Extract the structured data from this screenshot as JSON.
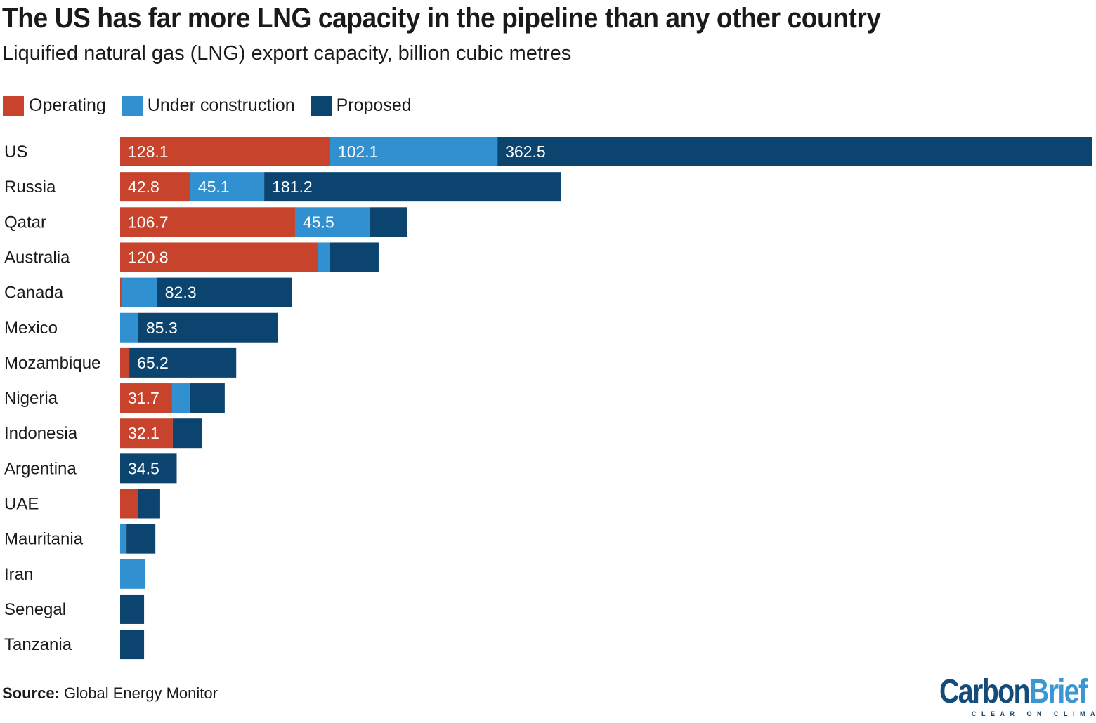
{
  "chart_data": {
    "type": "bar",
    "orientation": "horizontal",
    "stacked": true,
    "title": "The US has far more LNG capacity in the pipeline than any other country",
    "subtitle": "Liquified natural gas (LNG) export capacity, billion cubic metres",
    "legend_position": "top-left",
    "grid": false,
    "xlim": [
      0,
      592.7
    ],
    "categories": [
      "US",
      "Russia",
      "Qatar",
      "Australia",
      "Canada",
      "Mexico",
      "Mozambique",
      "Nigeria",
      "Indonesia",
      "Argentina",
      "UAE",
      "Mauritania",
      "Iran",
      "Senegal",
      "Tanzania"
    ],
    "series": [
      {
        "name": "Operating",
        "color": "#c8432b",
        "values": [
          128.1,
          42.8,
          106.7,
          120.8,
          0.9,
          0,
          5.6,
          31.7,
          32.1,
          0,
          11.1,
          0,
          0,
          0,
          0
        ],
        "labeled": [
          true,
          true,
          true,
          true,
          false,
          false,
          false,
          true,
          true,
          false,
          false,
          false,
          false,
          false,
          false
        ]
      },
      {
        "name": "Under construction",
        "color": "#3090d0",
        "values": [
          102.1,
          45.1,
          45.5,
          7.3,
          21.7,
          11.1,
          0,
          10.7,
          0,
          0,
          0,
          3.9,
          15.4,
          0,
          0
        ],
        "labeled": [
          true,
          true,
          true,
          false,
          false,
          false,
          false,
          false,
          false,
          false,
          false,
          false,
          false,
          false,
          false
        ]
      },
      {
        "name": "Proposed",
        "color": "#0c4470",
        "values": [
          362.5,
          181.2,
          22.7,
          29.6,
          82.3,
          85.3,
          65.2,
          21.4,
          18.0,
          34.5,
          13.3,
          17.6,
          0,
          14.6,
          14.6
        ],
        "labeled": [
          true,
          true,
          false,
          false,
          true,
          true,
          true,
          false,
          false,
          true,
          false,
          false,
          false,
          false,
          false
        ]
      }
    ]
  },
  "source": {
    "label": "Source:",
    "text": "Global Energy Monitor"
  },
  "logo": {
    "carbon": "Carbon",
    "brief": "Brief",
    "tagline": "CLEAR ON CLIMATE"
  }
}
